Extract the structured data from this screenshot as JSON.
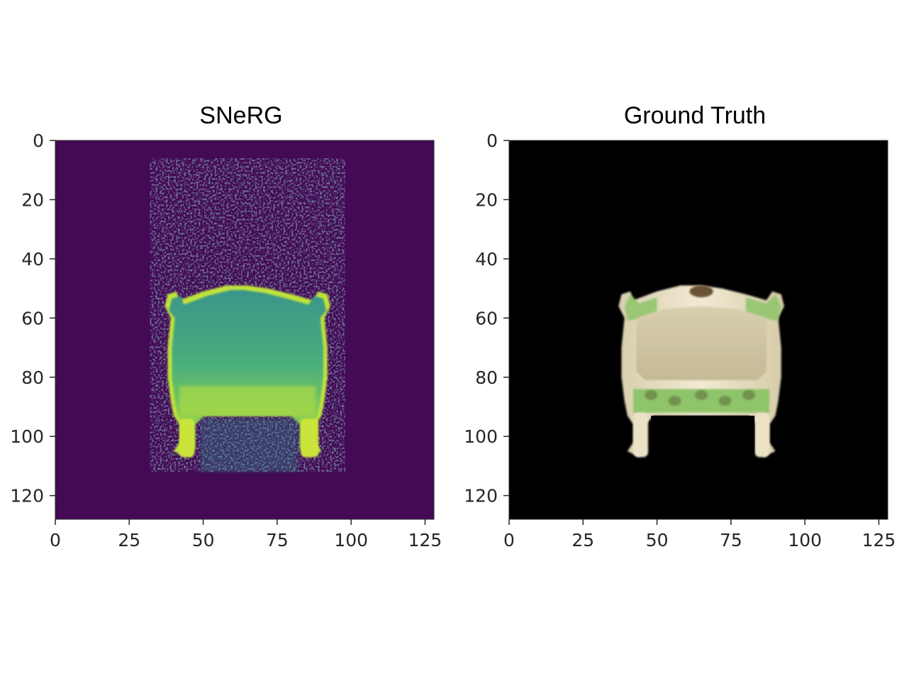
{
  "chart_data": [
    {
      "type": "heatmap",
      "title": "SNeRG",
      "xlabel": "",
      "ylabel": "",
      "xlim": [
        0,
        128
      ],
      "ylim": [
        128,
        0
      ],
      "x_ticks": [
        0,
        25,
        50,
        75,
        100,
        125
      ],
      "y_ticks": [
        0,
        20,
        40,
        60,
        80,
        100,
        120
      ],
      "colormap": "viridis",
      "colors": {
        "background": "#440a56",
        "body_top": "#3b9a8a",
        "body_bottom": "#8fd04a",
        "edge": "#bfe23a",
        "legs": "#cbe43a"
      },
      "content": "depth render of the armchair back"
    },
    {
      "type": "heatmap",
      "title": "Ground Truth",
      "xlabel": "",
      "ylabel": "",
      "xlim": [
        0,
        128
      ],
      "ylim": [
        128,
        0
      ],
      "x_ticks": [
        0,
        25,
        50,
        75,
        100,
        125
      ],
      "y_ticks": [
        0,
        20,
        40,
        60,
        80,
        100,
        120
      ],
      "colors": {
        "background": "#000000",
        "frame": "#e8e0c6",
        "panel": "#cfc5a3",
        "upholstery": "#8fc56a",
        "carving": "#6a5236"
      },
      "content": "rgb render of the armchair back"
    }
  ]
}
